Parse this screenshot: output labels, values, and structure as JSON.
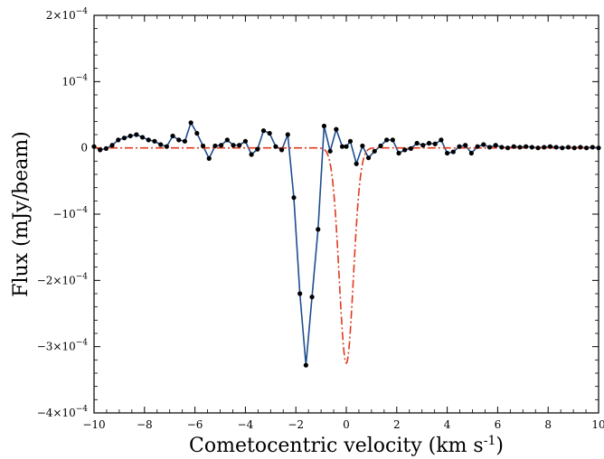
{
  "chart_data": {
    "type": "line",
    "xlabel": "Cometocentric velocity (km s",
    "xlabel_sup": "-1",
    "xlabel_end": ")",
    "ylabel": "Flux (mJy/beam)",
    "xlim": [
      -10,
      10
    ],
    "ylim": [
      -0.0004,
      0.0002
    ],
    "grid": false,
    "x_ticks": [
      -10,
      -8,
      -6,
      -4,
      -2,
      0,
      2,
      4,
      6,
      8,
      10
    ],
    "x_tick_labels": [
      "−10",
      "−8",
      "−6",
      "−4",
      "−2",
      "0",
      "2",
      "4",
      "6",
      "8",
      "10"
    ],
    "y_ticks": [
      {
        "value": 0.0002,
        "mant": "2×10",
        "exp": "−4"
      },
      {
        "value": 0.0001,
        "mant": "10",
        "exp": "−4"
      },
      {
        "value": 0,
        "mant": "0",
        "exp": ""
      },
      {
        "value": -0.0001,
        "mant": "−10",
        "exp": "−4"
      },
      {
        "value": -0.0002,
        "mant": "−2×10",
        "exp": "−4"
      },
      {
        "value": -0.0003,
        "mant": "−3×10",
        "exp": "−4"
      },
      {
        "value": -0.0004,
        "mant": "−4×10",
        "exp": "−4"
      }
    ],
    "series": [
      {
        "style": "line-markers",
        "color": "#1f4e8c",
        "marker_color": "#000000",
        "x": [
          -10.0,
          -9.76,
          -9.52,
          -9.28,
          -9.04,
          -8.8,
          -8.56,
          -8.32,
          -8.08,
          -7.84,
          -7.6,
          -7.36,
          -7.12,
          -6.88,
          -6.64,
          -6.4,
          -6.16,
          -5.92,
          -5.68,
          -5.44,
          -5.2,
          -4.96,
          -4.72,
          -4.48,
          -4.24,
          -4.0,
          -3.76,
          -3.52,
          -3.28,
          -3.04,
          -2.8,
          -2.56,
          -2.32,
          -2.08,
          -1.84,
          -1.6,
          -1.36,
          -1.12,
          -0.88,
          -0.64,
          -0.4,
          -0.16,
          0.0,
          0.16,
          0.4,
          0.64,
          0.88,
          1.12,
          1.36,
          1.6,
          1.84,
          2.08,
          2.32,
          2.56,
          2.8,
          3.04,
          3.28,
          3.52,
          3.76,
          4.0,
          4.24,
          4.48,
          4.72,
          4.96,
          5.2,
          5.44,
          5.68,
          5.92,
          6.16,
          6.4,
          6.64,
          6.88,
          7.12,
          7.36,
          7.6,
          7.84,
          8.08,
          8.32,
          8.56,
          8.8,
          9.04,
          9.28,
          9.52,
          9.76,
          10.0
        ],
        "y": [
          2e-06,
          -3e-06,
          -1e-06,
          4e-06,
          1.2e-05,
          1.5e-05,
          1.8e-05,
          2e-05,
          1.6e-05,
          1.2e-05,
          1e-05,
          5e-06,
          2e-06,
          1.8e-05,
          1.2e-05,
          1e-05,
          3.8e-05,
          2.2e-05,
          3e-06,
          -1.6e-05,
          3e-06,
          4e-06,
          1.2e-05,
          4e-06,
          4e-06,
          1e-05,
          -1e-05,
          -2e-06,
          2.6e-05,
          2.2e-05,
          2e-06,
          -3e-06,
          2e-05,
          -7.5e-05,
          -0.00022,
          -0.000328,
          -0.000225,
          -0.000123,
          3.3e-05,
          -5e-06,
          2.8e-05,
          2e-06,
          2e-06,
          1e-05,
          -2.4e-05,
          3e-06,
          -1.5e-05,
          -5e-06,
          3e-06,
          1.2e-05,
          1.2e-05,
          -8e-06,
          -3e-06,
          -1e-06,
          7e-06,
          4e-06,
          7e-06,
          6e-06,
          1.2e-05,
          -8e-06,
          -6e-06,
          2e-06,
          4e-06,
          -8e-06,
          2e-06,
          5e-06,
          1e-06,
          4e-06,
          1e-06,
          0.0,
          2e-06,
          1e-06,
          2e-06,
          1e-06,
          0.0,
          1e-06,
          2e-06,
          1e-06,
          0.0,
          1e-06,
          0.0,
          1e-06,
          0.0,
          1e-06,
          0.0
        ]
      },
      {
        "style": "dashdot",
        "color": "#e03a1e",
        "gaussian": {
          "amplitude": -0.000325,
          "center": 0.0,
          "sigma": 0.28
        },
        "x_range": [
          -10,
          10
        ]
      }
    ]
  }
}
